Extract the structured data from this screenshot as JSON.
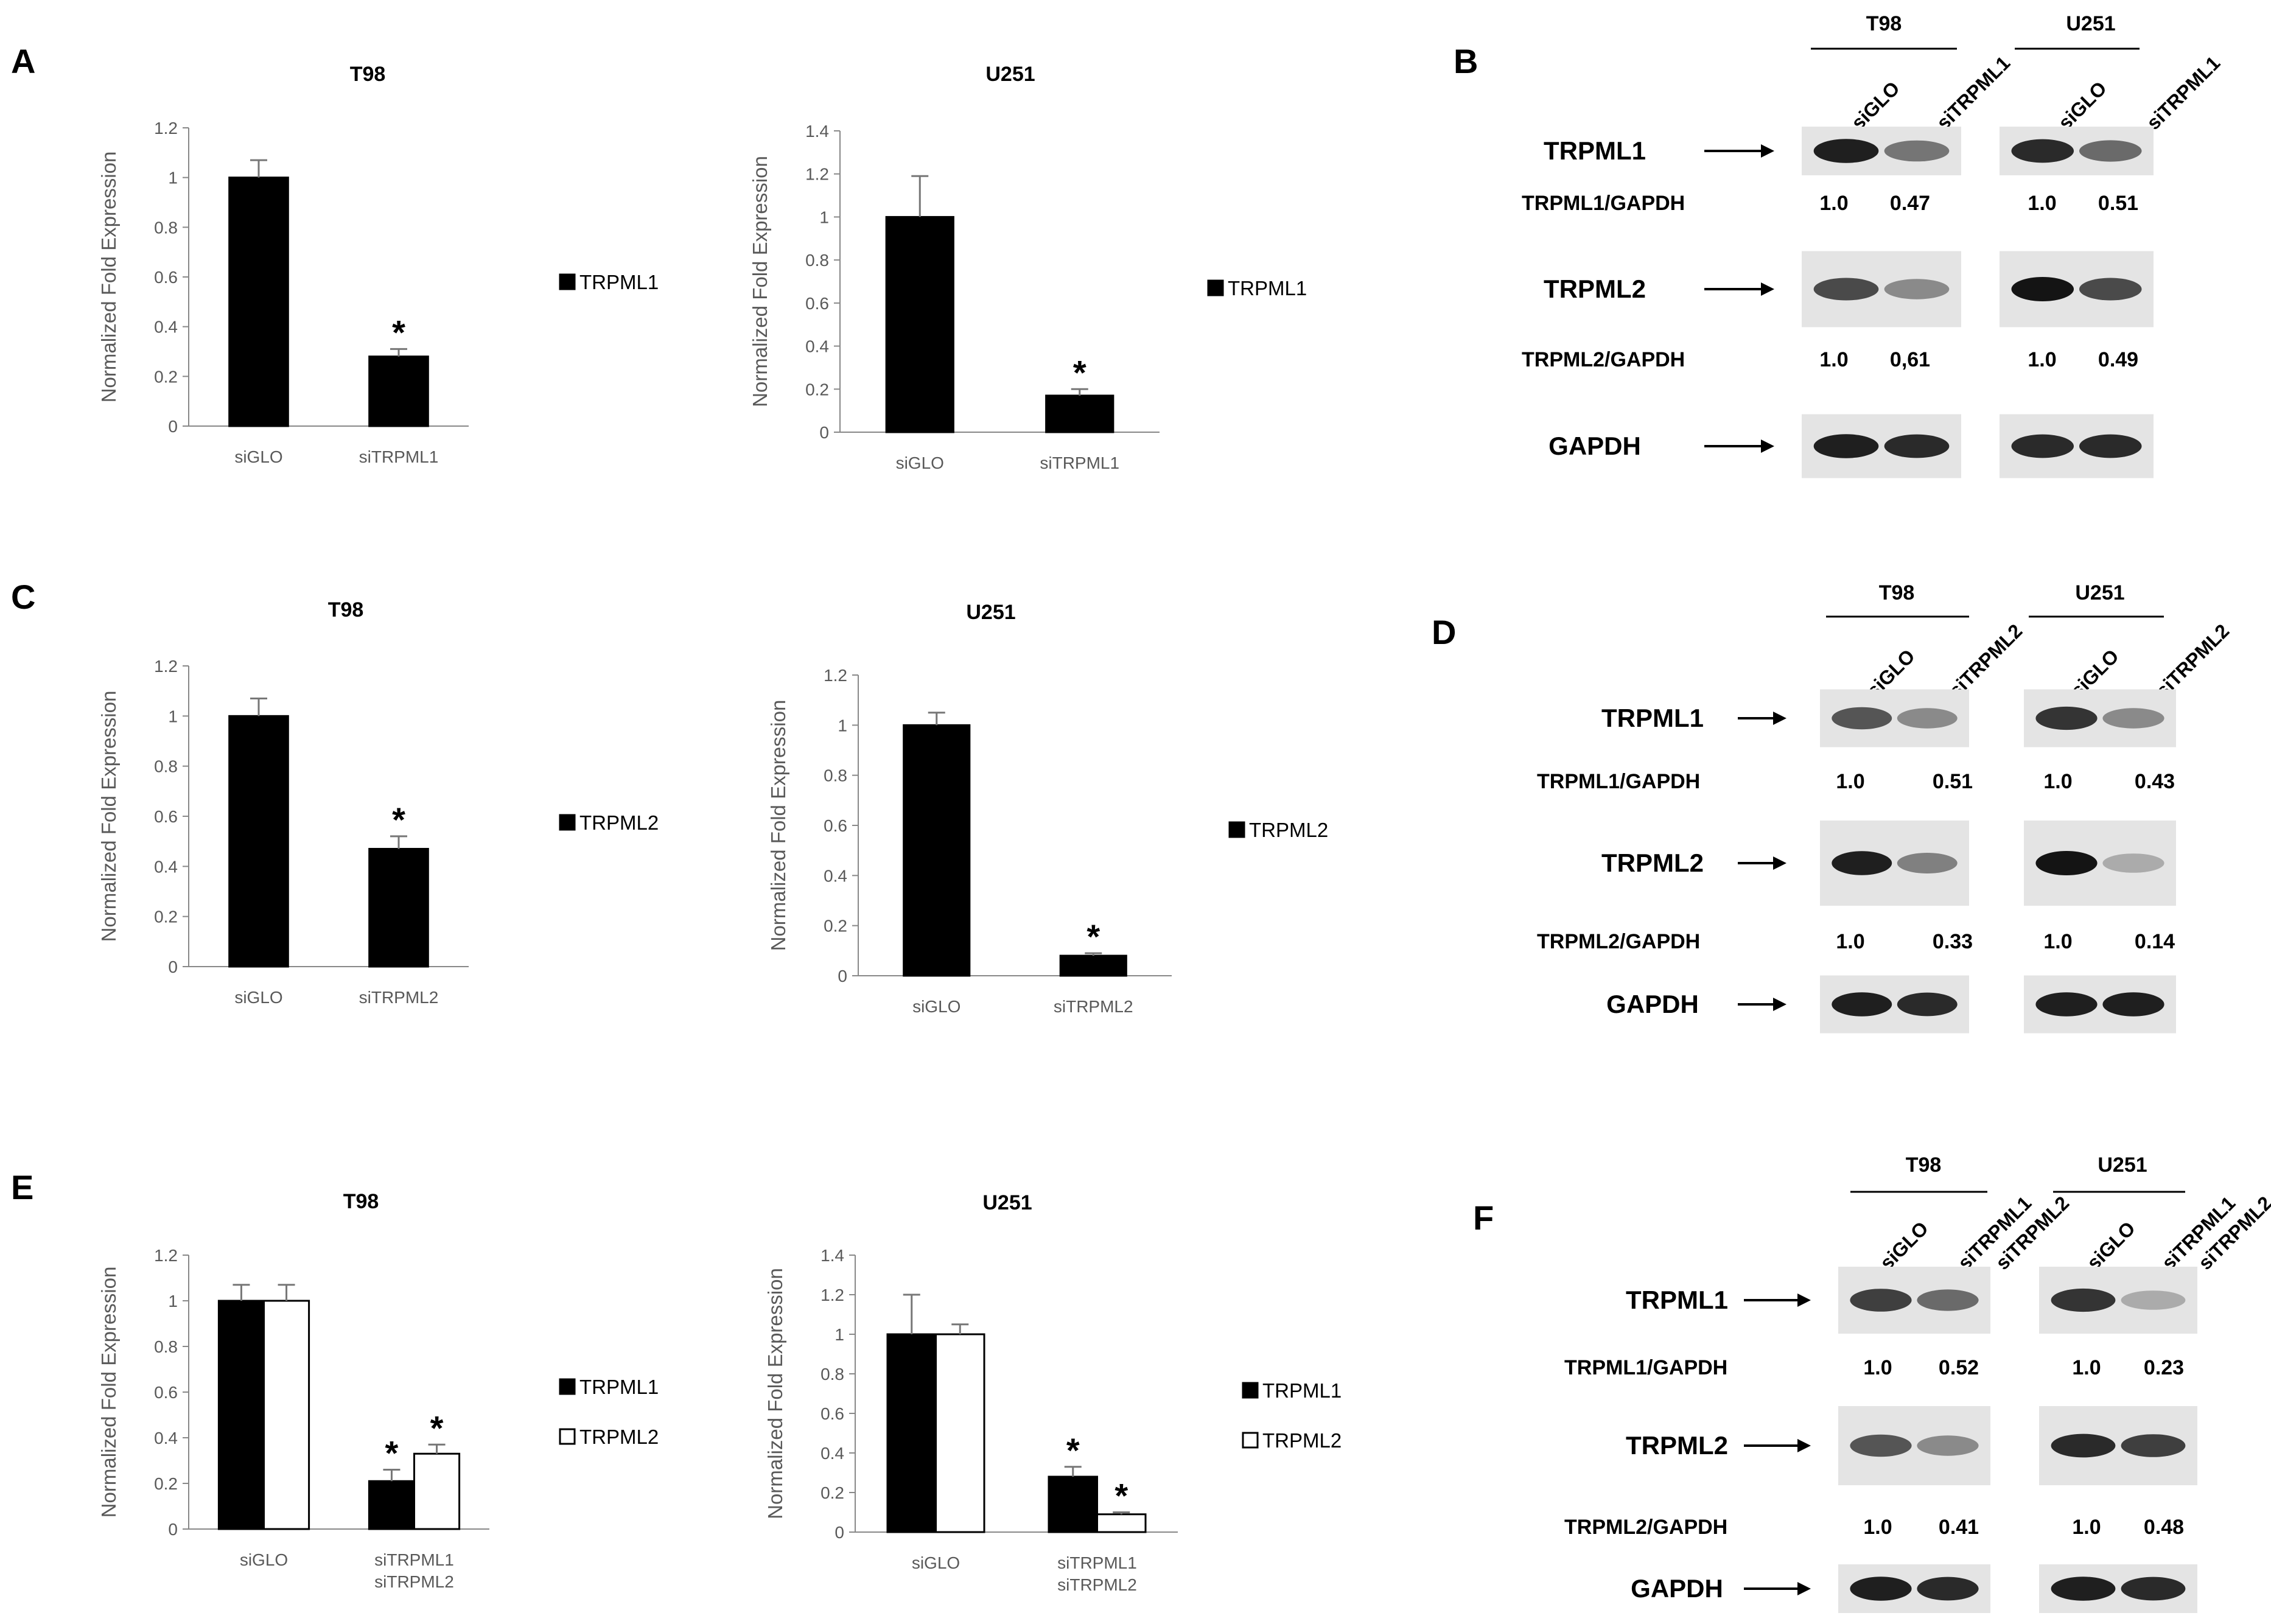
{
  "panels": {
    "A": "A",
    "B": "B",
    "C": "C",
    "D": "D",
    "E": "E",
    "F": "F"
  },
  "chart_data": [
    {
      "id": "A-T98",
      "type": "bar",
      "title": "T98",
      "ylabel": "Normalized Fold Expression",
      "xlabel": "",
      "ylim": [
        0,
        1.2
      ],
      "yticks": [
        "0",
        "0.2",
        "0.4",
        "0.6",
        "0.8",
        "1",
        "1.2"
      ],
      "categories": [
        "siGLO",
        "siTRPML1"
      ],
      "series": [
        {
          "name": "TRPML1",
          "color": "#000000",
          "values": [
            1.0,
            0.28
          ],
          "errors": [
            0.07,
            0.03
          ]
        }
      ],
      "annotations": [
        "",
        "*"
      ]
    },
    {
      "id": "A-U251",
      "type": "bar",
      "title": "U251",
      "ylabel": "Normalized Fold Expression",
      "xlabel": "",
      "ylim": [
        0,
        1.4
      ],
      "yticks": [
        "0",
        "0.2",
        "0.4",
        "0.6",
        "0.8",
        "1",
        "1.2",
        "1.4"
      ],
      "categories": [
        "siGLO",
        "siTRPML1"
      ],
      "series": [
        {
          "name": "TRPML1",
          "color": "#000000",
          "values": [
            1.0,
            0.17
          ],
          "errors": [
            0.19,
            0.03
          ]
        }
      ],
      "annotations": [
        "",
        "*"
      ]
    },
    {
      "id": "C-T98",
      "type": "bar",
      "title": "T98",
      "ylabel": "Normalized Fold Expression",
      "xlabel": "",
      "ylim": [
        0,
        1.2
      ],
      "yticks": [
        "0",
        "0.2",
        "0.4",
        "0.6",
        "0.8",
        "1",
        "1.2"
      ],
      "categories": [
        "siGLO",
        "siTRPML2"
      ],
      "series": [
        {
          "name": "TRPML2",
          "color": "#000000",
          "values": [
            1.0,
            0.47
          ],
          "errors": [
            0.07,
            0.05
          ]
        }
      ],
      "annotations": [
        "",
        "*"
      ]
    },
    {
      "id": "C-U251",
      "type": "bar",
      "title": "U251",
      "ylabel": "Normalized Fold Expression",
      "xlabel": "",
      "ylim": [
        0,
        1.2
      ],
      "yticks": [
        "0",
        "0.2",
        "0.4",
        "0.6",
        "0.8",
        "1",
        "1.2"
      ],
      "categories": [
        "siGLO",
        "siTRPML2"
      ],
      "series": [
        {
          "name": "TRPML2",
          "color": "#000000",
          "values": [
            1.0,
            0.08
          ],
          "errors": [
            0.05,
            0.01
          ]
        }
      ],
      "annotations": [
        "",
        "*"
      ]
    },
    {
      "id": "E-T98",
      "type": "bar",
      "title": "T98",
      "ylabel": "Normalized Fold Expression",
      "xlabel": "",
      "ylim": [
        0,
        1.2
      ],
      "yticks": [
        "0",
        "0.2",
        "0.4",
        "0.6",
        "0.8",
        "1",
        "1.2"
      ],
      "categories": [
        "siGLO",
        "siTRPML1\nsiTRPML2"
      ],
      "series": [
        {
          "name": "TRPML1",
          "color": "#000000",
          "values": [
            1.0,
            0.21
          ],
          "errors": [
            0.07,
            0.05
          ],
          "annotations": [
            "",
            "*"
          ]
        },
        {
          "name": "TRPML2",
          "color": "#ffffff",
          "values": [
            1.0,
            0.33
          ],
          "errors": [
            0.07,
            0.04
          ],
          "annotations": [
            "",
            "*"
          ]
        }
      ]
    },
    {
      "id": "E-U251",
      "type": "bar",
      "title": "U251",
      "ylabel": "Normalized Fold Expression",
      "xlabel": "",
      "ylim": [
        0,
        1.4
      ],
      "yticks": [
        "0",
        "0.2",
        "0.4",
        "0.6",
        "0.8",
        "1",
        "1.2",
        "1.4"
      ],
      "categories": [
        "siGLO",
        "siTRPML1\nsiTRPML2"
      ],
      "series": [
        {
          "name": "TRPML1",
          "color": "#000000",
          "values": [
            1.0,
            0.28
          ],
          "errors": [
            0.2,
            0.05
          ],
          "annotations": [
            "",
            "*"
          ]
        },
        {
          "name": "TRPML2",
          "color": "#ffffff",
          "values": [
            1.0,
            0.09
          ],
          "errors": [
            0.05,
            0.01
          ],
          "annotations": [
            "",
            "*"
          ]
        }
      ]
    }
  ],
  "blots": [
    {
      "panel": "B",
      "cells": [
        "T98",
        "U251"
      ],
      "lanes": [
        [
          "siGLO",
          "siTRPML1"
        ],
        [
          "siGLO",
          "siTRPML1"
        ]
      ],
      "rows": [
        {
          "label": "TRPML1",
          "ratio_label": "TRPML1/GAPDH",
          "ratios": [
            [
              "1.0",
              "0.47"
            ],
            [
              "1.0",
              "0.51"
            ]
          ],
          "band_intensity": [
            [
              0.95,
              0.55
            ],
            [
              0.9,
              0.6
            ]
          ]
        },
        {
          "label": "TRPML2",
          "ratio_label": "TRPML2/GAPDH",
          "ratios": [
            [
              "1.0",
              "0,61"
            ],
            [
              "1.0",
              "0.49"
            ]
          ],
          "band_intensity": [
            [
              0.75,
              0.45
            ],
            [
              1.0,
              0.75
            ]
          ]
        },
        {
          "label": "GAPDH",
          "ratio_label": "",
          "ratios": [],
          "band_intensity": [
            [
              0.95,
              0.9
            ],
            [
              0.9,
              0.9
            ]
          ]
        }
      ]
    },
    {
      "panel": "D",
      "cells": [
        "T98",
        "U251"
      ],
      "lanes": [
        [
          "siGLO",
          "siTRPML2"
        ],
        [
          "siGLO",
          "siTRPML2"
        ]
      ],
      "rows": [
        {
          "label": "TRPML1",
          "ratio_label": "TRPML1/GAPDH",
          "ratios": [
            [
              "1.0",
              "0.51"
            ],
            [
              "1.0",
              "0.43"
            ]
          ],
          "band_intensity": [
            [
              0.7,
              0.45
            ],
            [
              0.85,
              0.45
            ]
          ]
        },
        {
          "label": "TRPML2",
          "ratio_label": "TRPML2/GAPDH",
          "ratios": [
            [
              "1.0",
              "0.33"
            ],
            [
              "1.0",
              "0.14"
            ]
          ],
          "band_intensity": [
            [
              0.95,
              0.5
            ],
            [
              1.0,
              0.3
            ]
          ]
        },
        {
          "label": "GAPDH",
          "ratio_label": "",
          "ratios": [],
          "band_intensity": [
            [
              0.95,
              0.9
            ],
            [
              0.95,
              0.95
            ]
          ]
        }
      ]
    },
    {
      "panel": "F",
      "cells": [
        "T98",
        "U251"
      ],
      "lanes": [
        [
          "siGLO",
          "siTRPML1",
          "siTRPML2"
        ],
        [
          "siGLO",
          "siTRPML1",
          "siTRPML2"
        ]
      ],
      "rows": [
        {
          "label": "TRPML1",
          "ratio_label": "TRPML1/GAPDH",
          "ratios": [
            [
              "1.0",
              "0.52"
            ],
            [
              "1.0",
              "0.23"
            ]
          ],
          "band_intensity": [
            [
              0.8,
              0.6
            ],
            [
              0.85,
              0.3
            ]
          ]
        },
        {
          "label": "TRPML2",
          "ratio_label": "TRPML2/GAPDH",
          "ratios": [
            [
              "1.0",
              "0.41"
            ],
            [
              "1.0",
              "0.48"
            ]
          ],
          "band_intensity": [
            [
              0.7,
              0.45
            ],
            [
              0.9,
              0.8
            ]
          ]
        },
        {
          "label": "GAPDH",
          "ratio_label": "",
          "ratios": [],
          "band_intensity": [
            [
              0.95,
              0.9
            ],
            [
              0.95,
              0.9
            ]
          ]
        }
      ]
    }
  ]
}
